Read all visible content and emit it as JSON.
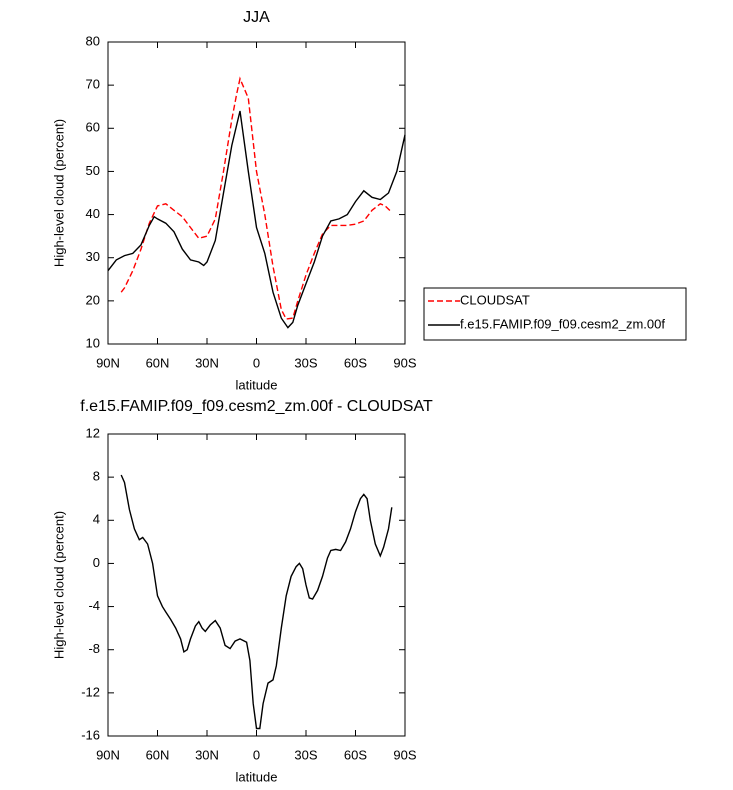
{
  "chart_data": [
    {
      "type": "line",
      "title": "JJA",
      "xlabel": "latitude",
      "ylabel": "High-level cloud (percent)",
      "xlim": [
        90,
        -90
      ],
      "xticks": [
        {
          "value": 90,
          "label": "90N"
        },
        {
          "value": 60,
          "label": "60N"
        },
        {
          "value": 30,
          "label": "30N"
        },
        0,
        {
          "value": -30,
          "label": "30S"
        },
        {
          "value": -60,
          "label": "60S"
        },
        {
          "value": -90,
          "label": "90S"
        }
      ],
      "ylim": [
        10,
        80
      ],
      "yticks": [
        10,
        20,
        30,
        40,
        50,
        60,
        70,
        80
      ],
      "legend": "right",
      "series": [
        {
          "name": "CLOUDSAT",
          "color": "#ff0000",
          "dash": true,
          "x": [
            82,
            80,
            75,
            70,
            65,
            60,
            55,
            50,
            45,
            40,
            35,
            30,
            25,
            20,
            15,
            12,
            10,
            5,
            0,
            -5,
            -10,
            -15,
            -18,
            -22,
            -25,
            -30,
            -35,
            -40,
            -45,
            -50,
            -55,
            -60,
            -65,
            -70,
            -75,
            -78,
            -82
          ],
          "values": [
            22,
            23,
            27,
            32,
            38,
            42,
            42.5,
            41,
            39.5,
            37,
            34.5,
            35,
            39,
            50,
            62,
            68,
            71.5,
            67,
            50,
            40,
            28,
            18,
            15.8,
            16,
            20,
            26,
            31,
            35.5,
            37.5,
            37.5,
            37.5,
            37.8,
            38.5,
            41,
            42.5,
            42,
            40.5
          ]
        },
        {
          "name": "f.e15.FAMIP.f09_f09.cesm2_zm.00f",
          "color": "#000000",
          "dash": false,
          "x": [
            90,
            85,
            80,
            75,
            70,
            65,
            62,
            60,
            55,
            50,
            45,
            40,
            35,
            32,
            30,
            25,
            20,
            15,
            10,
            5,
            0,
            -5,
            -10,
            -15,
            -19,
            -22,
            -25,
            -30,
            -35,
            -40,
            -45,
            -50,
            -55,
            -60,
            -65,
            -70,
            -75,
            -80,
            -85,
            -90
          ],
          "values": [
            27,
            29.5,
            30.5,
            31,
            33,
            37.5,
            39.5,
            39,
            38,
            36,
            32,
            29.5,
            29,
            28.2,
            29,
            34,
            45,
            56,
            64,
            50,
            37,
            31,
            22,
            16,
            13.8,
            15,
            19,
            24,
            29,
            35,
            38.5,
            39,
            40,
            43,
            45.5,
            44,
            43.5,
            45,
            50,
            58.5
          ]
        }
      ]
    },
    {
      "type": "line",
      "title": "f.e15.FAMIP.f09_f09.cesm2_zm.00f - CLOUDSAT",
      "xlabel": "latitude",
      "ylabel": "High-level cloud (percent)",
      "xlim": [
        90,
        -90
      ],
      "xticks": [
        {
          "value": 90,
          "label": "90N"
        },
        {
          "value": 60,
          "label": "60N"
        },
        {
          "value": 30,
          "label": "30N"
        },
        0,
        {
          "value": -30,
          "label": "30S"
        },
        {
          "value": -60,
          "label": "60S"
        },
        {
          "value": -90,
          "label": "90S"
        }
      ],
      "ylim": [
        -16,
        12
      ],
      "yticks": [
        -16,
        -12,
        -8,
        -4,
        0,
        4,
        8,
        12
      ],
      "series": [
        {
          "color": "#000000",
          "dash": false,
          "x": [
            82,
            80,
            77,
            74,
            71,
            69,
            66,
            63,
            60,
            57,
            55,
            52,
            49,
            46,
            44,
            42,
            40,
            37,
            35,
            33,
            31,
            28,
            25,
            22,
            19,
            16,
            13,
            10,
            6,
            4,
            2,
            0,
            -2,
            -4,
            -7,
            -10,
            -12,
            -15,
            -18,
            -21,
            -24,
            -26,
            -28,
            -30,
            -32,
            -34,
            -37,
            -40,
            -43,
            -45,
            -48,
            -51,
            -54,
            -57,
            -60,
            -63,
            -65,
            -67,
            -69,
            -72,
            -75,
            -77,
            -80,
            -82
          ],
          "values": [
            8.2,
            7.5,
            5,
            3.2,
            2.2,
            2.4,
            1.8,
            0,
            -3,
            -4,
            -4.5,
            -5.2,
            -6,
            -7,
            -8.2,
            -8,
            -7,
            -5.8,
            -5.4,
            -6,
            -6.3,
            -5.7,
            -5.3,
            -6,
            -7.6,
            -7.9,
            -7.2,
            -7,
            -7.3,
            -9,
            -13,
            -15.3,
            -15.3,
            -13,
            -11.1,
            -10.8,
            -9.5,
            -6,
            -3,
            -1.2,
            -0.3,
            0,
            -0.5,
            -2,
            -3.2,
            -3.3,
            -2.5,
            -1.2,
            0.5,
            1.2,
            1.3,
            1.2,
            2,
            3.2,
            4.8,
            6,
            6.4,
            6,
            4,
            1.8,
            0.7,
            1.5,
            3.2,
            5.2
          ]
        }
      ]
    }
  ]
}
